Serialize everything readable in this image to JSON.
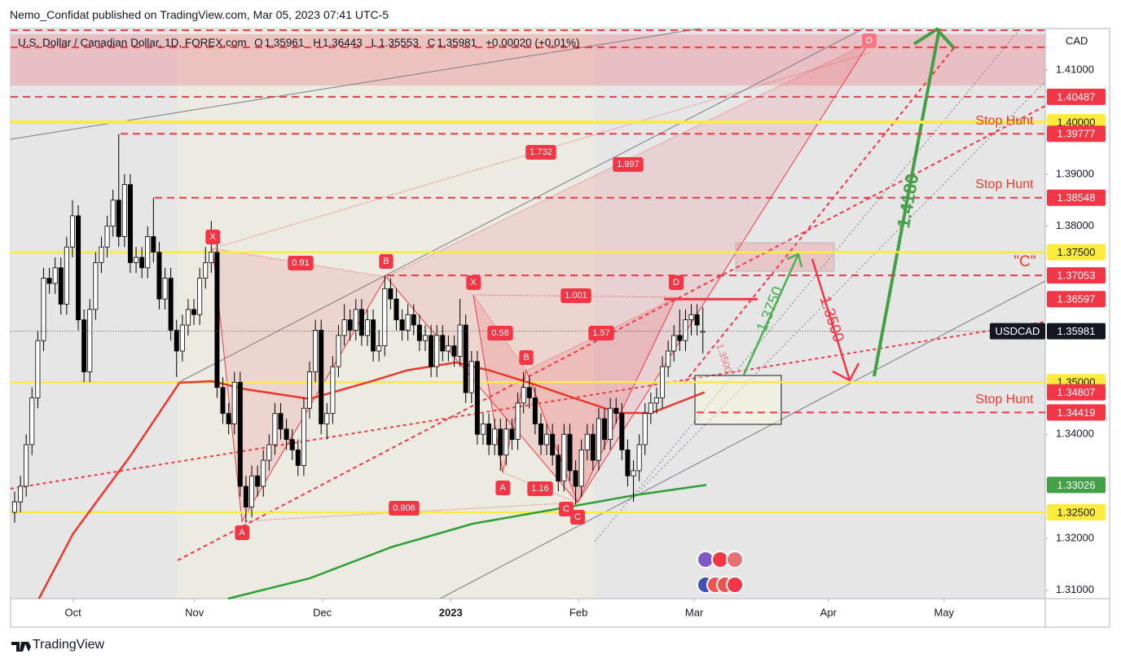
{
  "header": {
    "publisher": "Nemo_Confidat published on TradingView.com, Mar 05, 2023 07:41 UTC-5",
    "footer": "TradingView"
  },
  "chart_data": {
    "type": "candlestick",
    "title": "U.S. Dollar / Canadian Dollar, 1D, FOREX.com",
    "ohlc_letters": [
      "O",
      "H",
      "L",
      "C"
    ],
    "change": "+0.00020 (+0.01%)",
    "currency": "CAD",
    "symbol": "USDCAD",
    "up_color": "#ffffff",
    "down_color": "#000000",
    "xlim": [
      -0.7,
      178.2
    ],
    "ylim": [
      1.3084,
      1.418
    ],
    "xticks": [
      {
        "value": 10.1,
        "label": "Oct"
      },
      {
        "value": 31.1,
        "label": "Nov"
      },
      {
        "value": 53.2,
        "label": "Dec"
      },
      {
        "value": 75.4,
        "label": "2023"
      },
      {
        "value": 97.5,
        "label": "Feb"
      },
      {
        "value": 117.5,
        "label": "Mar"
      },
      {
        "value": 140.7,
        "label": "Apr"
      },
      {
        "value": 160.7,
        "label": "May"
      }
    ],
    "yticks": [
      {
        "value": 1.41,
        "label": "1.41000"
      },
      {
        "value": 1.39,
        "label": "1.39000"
      },
      {
        "value": 1.38,
        "label": "1.38000"
      },
      {
        "value": 1.34,
        "label": "1.34000"
      },
      {
        "value": 1.32,
        "label": "1.32000"
      },
      {
        "value": 1.31,
        "label": "1.31000"
      }
    ],
    "ohlc": [
      [
        1.325,
        1.329,
        1.323,
        1.327
      ],
      [
        1.327,
        1.332,
        1.325,
        1.33
      ],
      [
        1.33,
        1.34,
        1.328,
        1.338
      ],
      [
        1.338,
        1.349,
        1.336,
        1.347
      ],
      [
        1.347,
        1.36,
        1.345,
        1.358
      ],
      [
        1.358,
        1.372,
        1.356,
        1.37
      ],
      [
        1.37,
        1.372,
        1.367,
        1.369
      ],
      [
        1.369,
        1.374,
        1.367,
        1.372
      ],
      [
        1.372,
        1.374,
        1.363,
        1.365
      ],
      [
        1.365,
        1.378,
        1.363,
        1.376
      ],
      [
        1.376,
        1.385,
        1.374,
        1.382
      ],
      [
        1.382,
        1.384,
        1.36,
        1.362
      ],
      [
        1.362,
        1.364,
        1.35,
        1.352
      ],
      [
        1.352,
        1.366,
        1.35,
        1.364
      ],
      [
        1.364,
        1.375,
        1.362,
        1.373
      ],
      [
        1.373,
        1.378,
        1.371,
        1.376
      ],
      [
        1.376,
        1.382,
        1.374,
        1.38
      ],
      [
        1.38,
        1.387,
        1.378,
        1.385
      ],
      [
        1.385,
        1.3977,
        1.376,
        1.378
      ],
      [
        1.378,
        1.39,
        1.376,
        1.388
      ],
      [
        1.388,
        1.39,
        1.371,
        1.373
      ],
      [
        1.373,
        1.376,
        1.371,
        1.374
      ],
      [
        1.374,
        1.376,
        1.37,
        1.372
      ],
      [
        1.372,
        1.38,
        1.37,
        1.378
      ],
      [
        1.378,
        1.3855,
        1.373,
        1.375
      ],
      [
        1.375,
        1.377,
        1.364,
        1.366
      ],
      [
        1.366,
        1.372,
        1.364,
        1.37
      ],
      [
        1.37,
        1.372,
        1.358,
        1.36
      ],
      [
        1.36,
        1.362,
        1.351,
        1.356
      ],
      [
        1.356,
        1.363,
        1.354,
        1.361
      ],
      [
        1.361,
        1.366,
        1.359,
        1.364
      ],
      [
        1.364,
        1.366,
        1.361,
        1.363
      ],
      [
        1.363,
        1.372,
        1.361,
        1.37
      ],
      [
        1.37,
        1.376,
        1.368,
        1.373
      ],
      [
        1.373,
        1.381,
        1.371,
        1.375
      ],
      [
        1.375,
        1.377,
        1.347,
        1.349
      ],
      [
        1.349,
        1.351,
        1.342,
        1.344
      ],
      [
        1.344,
        1.346,
        1.34,
        1.342
      ],
      [
        1.342,
        1.352,
        1.34,
        1.35
      ],
      [
        1.35,
        1.352,
        1.328,
        1.33
      ],
      [
        1.33,
        1.332,
        1.323,
        1.326
      ],
      [
        1.326,
        1.334,
        1.324,
        1.332
      ],
      [
        1.332,
        1.334,
        1.328,
        1.33
      ],
      [
        1.33,
        1.337,
        1.328,
        1.335
      ],
      [
        1.335,
        1.34,
        1.333,
        1.338
      ],
      [
        1.338,
        1.346,
        1.336,
        1.344
      ],
      [
        1.344,
        1.346,
        1.339,
        1.341
      ],
      [
        1.341,
        1.343,
        1.337,
        1.339
      ],
      [
        1.339,
        1.341,
        1.335,
        1.337
      ],
      [
        1.337,
        1.339,
        1.332,
        1.334
      ],
      [
        1.334,
        1.347,
        1.332,
        1.345
      ],
      [
        1.345,
        1.354,
        1.343,
        1.352
      ],
      [
        1.352,
        1.362,
        1.35,
        1.36
      ],
      [
        1.36,
        1.362,
        1.34,
        1.342
      ],
      [
        1.342,
        1.346,
        1.339,
        1.344
      ],
      [
        1.344,
        1.355,
        1.342,
        1.353
      ],
      [
        1.353,
        1.361,
        1.351,
        1.359
      ],
      [
        1.359,
        1.365,
        1.357,
        1.362
      ],
      [
        1.362,
        1.364,
        1.358,
        1.36
      ],
      [
        1.36,
        1.366,
        1.358,
        1.364
      ],
      [
        1.364,
        1.366,
        1.357,
        1.359
      ],
      [
        1.359,
        1.364,
        1.357,
        1.362
      ],
      [
        1.362,
        1.364,
        1.354,
        1.356
      ],
      [
        1.356,
        1.36,
        1.354,
        1.357
      ],
      [
        1.357,
        1.3705,
        1.355,
        1.368
      ],
      [
        1.368,
        1.37,
        1.364,
        1.366
      ],
      [
        1.366,
        1.368,
        1.36,
        1.362
      ],
      [
        1.362,
        1.364,
        1.358,
        1.36
      ],
      [
        1.36,
        1.365,
        1.358,
        1.363
      ],
      [
        1.363,
        1.365,
        1.359,
        1.361
      ],
      [
        1.361,
        1.363,
        1.356,
        1.358
      ],
      [
        1.358,
        1.361,
        1.356,
        1.359
      ],
      [
        1.359,
        1.361,
        1.351,
        1.353
      ],
      [
        1.353,
        1.361,
        1.351,
        1.359
      ],
      [
        1.359,
        1.361,
        1.354,
        1.356
      ],
      [
        1.356,
        1.359,
        1.354,
        1.357
      ],
      [
        1.357,
        1.359,
        1.353,
        1.355
      ],
      [
        1.355,
        1.366,
        1.353,
        1.361
      ],
      [
        1.361,
        1.363,
        1.346,
        1.348
      ],
      [
        1.348,
        1.356,
        1.346,
        1.354
      ],
      [
        1.354,
        1.356,
        1.338,
        1.34
      ],
      [
        1.34,
        1.344,
        1.338,
        1.342
      ],
      [
        1.342,
        1.344,
        1.336,
        1.338
      ],
      [
        1.338,
        1.343,
        1.336,
        1.341
      ],
      [
        1.341,
        1.343,
        1.333,
        1.336
      ],
      [
        1.336,
        1.343,
        1.334,
        1.341
      ],
      [
        1.341,
        1.343,
        1.337,
        1.339
      ],
      [
        1.339,
        1.348,
        1.337,
        1.346
      ],
      [
        1.346,
        1.352,
        1.344,
        1.349
      ],
      [
        1.349,
        1.351,
        1.345,
        1.347
      ],
      [
        1.347,
        1.349,
        1.34,
        1.342
      ],
      [
        1.342,
        1.344,
        1.336,
        1.338
      ],
      [
        1.338,
        1.342,
        1.336,
        1.34
      ],
      [
        1.34,
        1.342,
        1.334,
        1.336
      ],
      [
        1.336,
        1.338,
        1.329,
        1.331
      ],
      [
        1.331,
        1.342,
        1.329,
        1.34
      ],
      [
        1.34,
        1.342,
        1.331,
        1.333
      ],
      [
        1.333,
        1.335,
        1.3265,
        1.33
      ],
      [
        1.33,
        1.339,
        1.328,
        1.337
      ],
      [
        1.337,
        1.342,
        1.335,
        1.34
      ],
      [
        1.34,
        1.342,
        1.333,
        1.335
      ],
      [
        1.335,
        1.345,
        1.333,
        1.343
      ],
      [
        1.343,
        1.345,
        1.337,
        1.339
      ],
      [
        1.339,
        1.347,
        1.337,
        1.345
      ],
      [
        1.345,
        1.347,
        1.342,
        1.344
      ],
      [
        1.344,
        1.346,
        1.335,
        1.337
      ],
      [
        1.337,
        1.339,
        1.33,
        1.332
      ],
      [
        1.332,
        1.335,
        1.327,
        1.333
      ],
      [
        1.333,
        1.34,
        1.331,
        1.338
      ],
      [
        1.338,
        1.346,
        1.336,
        1.344
      ],
      [
        1.344,
        1.348,
        1.342,
        1.346
      ],
      [
        1.346,
        1.349,
        1.344,
        1.347
      ],
      [
        1.347,
        1.355,
        1.345,
        1.353
      ],
      [
        1.353,
        1.358,
        1.351,
        1.356
      ],
      [
        1.356,
        1.361,
        1.354,
        1.359
      ],
      [
        1.359,
        1.364,
        1.356,
        1.358
      ],
      [
        1.358,
        1.364,
        1.356,
        1.362
      ],
      [
        1.362,
        1.365,
        1.359,
        1.363
      ],
      [
        1.363,
        1.365,
        1.359,
        1.361
      ],
      [
        1.35961,
        1.36443,
        1.35553,
        1.35981
      ]
    ],
    "moving_averages": [
      {
        "color": "#e8392c",
        "x": [
          4.2,
          10.1,
          20.0,
          28.5,
          34.1,
          39.7,
          51.0,
          60.8,
          67.9,
          76.3,
          82.0,
          89.0,
          96.1,
          104.5,
          110.1,
          119.3
        ],
        "values": [
          1.3084,
          1.3209,
          1.3358,
          1.3499,
          1.3502,
          1.3487,
          1.3468,
          1.3499,
          1.3523,
          1.3538,
          1.3523,
          1.3499,
          1.3472,
          1.3441,
          1.3441,
          1.34807
        ]
      },
      {
        "color": "#2e9e35",
        "x": [
          36.9,
          51.0,
          65.1,
          79.2,
          96.1,
          107.3,
          119.6
        ],
        "values": [
          1.3084,
          1.3123,
          1.3183,
          1.3228,
          1.3261,
          1.3283,
          1.33026
        ]
      }
    ],
    "levels": [
      {
        "value": 1.41767,
        "color": "#f23645",
        "style": "dashed"
      },
      {
        "value": 1.41438,
        "color": "#f23645",
        "style": "dashed"
      },
      {
        "value": 1.40487,
        "label": "1.40487",
        "color": "#f23645",
        "style": "dashed"
      },
      {
        "value": 1.4,
        "label": "1.40000",
        "color": "#ffeb3b",
        "style": "solid"
      },
      {
        "value": 1.39777,
        "label": "1.39777",
        "color": "#f23645",
        "style": "dashed"
      },
      {
        "value": 1.38548,
        "label": "1.38548",
        "color": "#f23645",
        "style": "dashed"
      },
      {
        "value": 1.375,
        "label": "1.37500",
        "color": "#ffeb3b",
        "style": "solid"
      },
      {
        "value": 1.37053,
        "label": "1.37053",
        "color": "#f23645",
        "style": "dashed"
      },
      {
        "value": 1.36597,
        "label": "1.36597",
        "color": "#f23645",
        "style": "segment"
      },
      {
        "value": 1.35,
        "label": "1.35000",
        "color": "#ffeb3b",
        "style": "solid"
      },
      {
        "value": 1.34807,
        "label": "1.34807",
        "color": "#f23645",
        "style": "none"
      },
      {
        "value": 1.34419,
        "label": "1.34419",
        "color": "#f23645",
        "style": "dashed"
      },
      {
        "value": 1.33026,
        "label": "1.33026",
        "color": "#43a047",
        "style": "none"
      },
      {
        "value": 1.325,
        "label": "1.32500",
        "color": "#ffeb3b",
        "style": "solid"
      }
    ],
    "annotations": [
      "Stop Hunt",
      "Stop Hunt",
      "Stop Hunt",
      "\"C\"",
      "X",
      "0.91",
      "B",
      "X",
      "D",
      "0.58",
      "1.57",
      "1.001",
      "1.732",
      "1.997",
      "B",
      "A",
      "1.16",
      "C",
      "C",
      "0.906",
      "A",
      "D",
      "1.3750",
      "1.4180",
      "1.3500",
      "1.3500"
    ]
  }
}
